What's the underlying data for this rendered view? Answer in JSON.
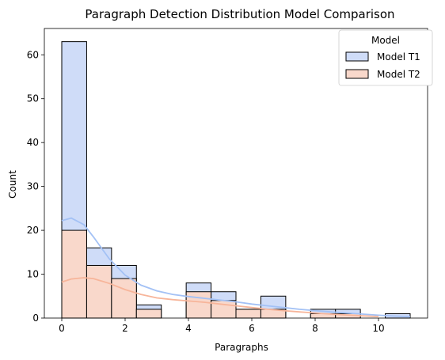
{
  "chart_data": {
    "type": "bar",
    "title": "Paragraph Detection Distribution Model Comparison",
    "xlabel": "Paragraphs",
    "ylabel": "Count",
    "xlim": [
      -0.55,
      11.55
    ],
    "ylim": [
      0,
      66
    ],
    "xticks": [
      0,
      2,
      4,
      6,
      8,
      10
    ],
    "yticks": [
      0,
      10,
      20,
      30,
      40,
      50,
      60
    ],
    "bin_width": 0.7857,
    "legend": {
      "title": "Model",
      "placement": "top-right"
    },
    "bins": [
      {
        "x0": 0.0,
        "x1": 0.7857
      },
      {
        "x0": 0.7857,
        "x1": 1.5714
      },
      {
        "x0": 1.5714,
        "x1": 2.3571
      },
      {
        "x0": 2.3571,
        "x1": 3.1429
      },
      {
        "x0": 3.9286,
        "x1": 4.7143
      },
      {
        "x0": 4.7143,
        "x1": 5.5
      },
      {
        "x0": 5.5,
        "x1": 6.2857
      },
      {
        "x0": 6.2857,
        "x1": 7.0714
      },
      {
        "x0": 7.8571,
        "x1": 8.6429
      },
      {
        "x0": 8.6429,
        "x1": 9.4286
      },
      {
        "x0": 10.2143,
        "x1": 11.0
      }
    ],
    "series": [
      {
        "name": "Model T1",
        "color": "#a3c1f5",
        "fill": "#cfdcf8",
        "values": [
          63,
          16,
          12,
          3,
          8,
          6,
          2,
          5,
          2,
          2,
          1
        ],
        "kde": [
          [
            0,
            22.2
          ],
          [
            0.3,
            22.8
          ],
          [
            0.7,
            21.3
          ],
          [
            1.0,
            18.5
          ],
          [
            1.5,
            13.5
          ],
          [
            2.0,
            9.8
          ],
          [
            2.5,
            7.5
          ],
          [
            3.0,
            6.2
          ],
          [
            3.5,
            5.4
          ],
          [
            4.0,
            4.9
          ],
          [
            4.5,
            4.5
          ],
          [
            5.0,
            4.1
          ],
          [
            5.5,
            3.7
          ],
          [
            6.0,
            3.2
          ],
          [
            6.5,
            2.8
          ],
          [
            7.0,
            2.4
          ],
          [
            7.5,
            2.0
          ],
          [
            8.0,
            1.7
          ],
          [
            8.5,
            1.4
          ],
          [
            9.0,
            1.15
          ],
          [
            9.5,
            0.9
          ],
          [
            10.0,
            0.65
          ],
          [
            10.5,
            0.45
          ],
          [
            11.0,
            0.3
          ]
        ]
      },
      {
        "name": "Model T2",
        "color": "#f7b59a",
        "fill": "#f9d8cb",
        "values": [
          20,
          12,
          9,
          2,
          6,
          4,
          2,
          2,
          1,
          1,
          0
        ],
        "kde": [
          [
            0,
            8.2
          ],
          [
            0.3,
            8.9
          ],
          [
            0.7,
            9.2
          ],
          [
            1.0,
            9.0
          ],
          [
            1.5,
            7.9
          ],
          [
            2.0,
            6.5
          ],
          [
            2.5,
            5.4
          ],
          [
            3.0,
            4.6
          ],
          [
            3.5,
            4.2
          ],
          [
            4.0,
            3.9
          ],
          [
            4.5,
            3.6
          ],
          [
            5.0,
            3.2
          ],
          [
            5.5,
            2.8
          ],
          [
            6.0,
            2.4
          ],
          [
            6.5,
            2.0
          ],
          [
            7.0,
            1.7
          ],
          [
            7.5,
            1.4
          ],
          [
            8.0,
            1.15
          ],
          [
            8.5,
            0.9
          ],
          [
            9.0,
            0.7
          ],
          [
            9.5,
            0.5
          ],
          [
            10.0,
            0.35
          ]
        ]
      }
    ]
  }
}
